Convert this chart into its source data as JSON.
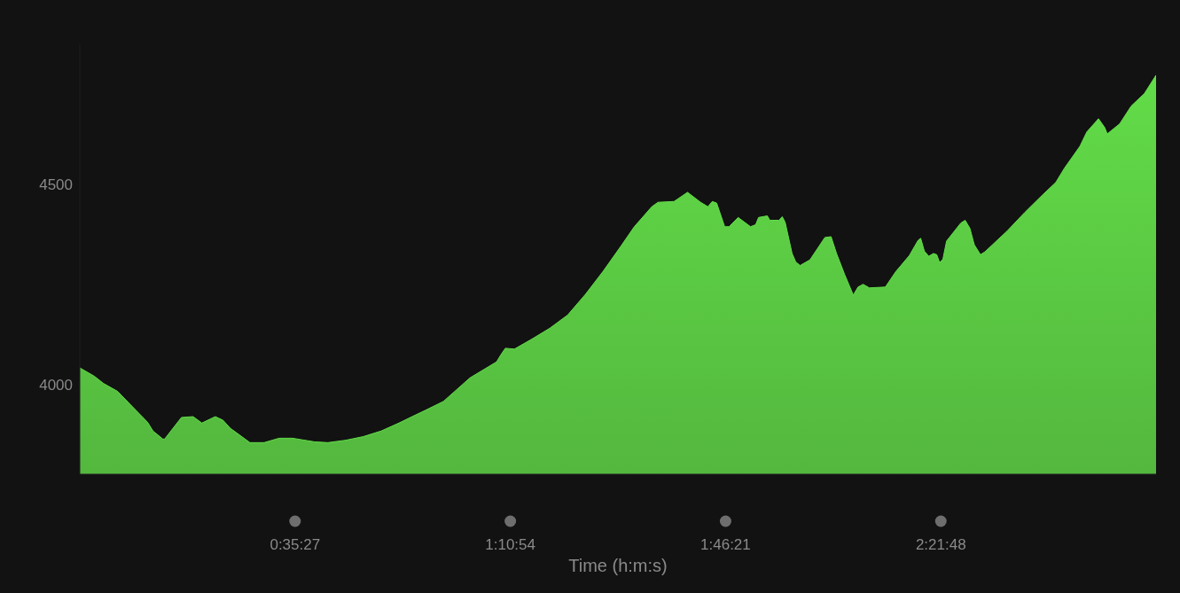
{
  "chart_data": {
    "type": "area",
    "xlabel": "Time (h:m:s)",
    "x": [
      0,
      0.04,
      0.065,
      0.104,
      0.138,
      0.186,
      0.201,
      0.228,
      0.233,
      0.279,
      0.311,
      0.335,
      0.372,
      0.393,
      0.413,
      0.467,
      0.506,
      0.547,
      0.584,
      0.644,
      0.681,
      0.73,
      0.778,
      0.827,
      0.876,
      0.912,
      0.949,
      0.998,
      1.071,
      1.144,
      1.156,
      1.168,
      1.193,
      1.241,
      1.29,
      1.339,
      1.388,
      1.436,
      1.485,
      1.522,
      1.548,
      1.57,
      1.587,
      1.631,
      1.668,
      1.704,
      1.724,
      1.736,
      1.748,
      1.77,
      1.782,
      1.807,
      1.841,
      1.855,
      1.863,
      1.887,
      1.894,
      1.919,
      1.928,
      1.936,
      1.955,
      1.965,
      1.977,
      2.004,
      2.045,
      2.062,
      2.077,
      2.099,
      2.123,
      2.136,
      2.15,
      2.167,
      2.211,
      2.24,
      2.277,
      2.301,
      2.308,
      2.318,
      2.33,
      2.343,
      2.352,
      2.36,
      2.369,
      2.379,
      2.418,
      2.43,
      2.443,
      2.455,
      2.472,
      2.484,
      2.545,
      2.594,
      2.642,
      2.679,
      2.703,
      2.745,
      2.764,
      2.796,
      2.813,
      2.82,
      2.854,
      2.886,
      2.922,
      2.954
    ],
    "series": [
      {
        "color": "#62dc48",
        "values": [
          4041,
          4020,
          4002,
          3982,
          3950,
          3905,
          3883,
          3863,
          3863,
          3917,
          3919,
          3903,
          3919,
          3910,
          3890,
          3854,
          3854,
          3865,
          3865,
          3856,
          3854,
          3860,
          3869,
          3883,
          3903,
          3919,
          3935,
          3957,
          4016,
          4056,
          4074,
          4090,
          4088,
          4113,
          4140,
          4173,
          4225,
          4282,
          4345,
          4394,
          4421,
          4444,
          4455,
          4457,
          4480,
          4455,
          4444,
          4457,
          4453,
          4394,
          4394,
          4417,
          4394,
          4399,
          4417,
          4421,
          4410,
          4410,
          4419,
          4405,
          4327,
          4306,
          4297,
          4311,
          4367,
          4369,
          4327,
          4275,
          4223,
          4243,
          4250,
          4241,
          4243,
          4282,
          4322,
          4360,
          4365,
          4333,
          4320,
          4327,
          4324,
          4304,
          4313,
          4358,
          4403,
          4410,
          4390,
          4349,
          4324,
          4331,
          4383,
          4430,
          4473,
          4505,
          4541,
          4595,
          4631,
          4664,
          4642,
          4626,
          4651,
          4696,
          4727,
          4773
        ]
      }
    ],
    "xlim": [
      0,
      2.954
    ],
    "ylim": [
      3775,
      4850
    ],
    "xticks": [
      {
        "value": 0.590833,
        "label": "0:35:27"
      },
      {
        "value": 1.181667,
        "label": "1:10:54"
      },
      {
        "value": 1.7725,
        "label": "1:46:21"
      },
      {
        "value": 2.363333,
        "label": "2:21:48"
      }
    ],
    "yticks": [
      4000,
      4500
    ],
    "grid": false,
    "legend": false,
    "marker": "none"
  }
}
